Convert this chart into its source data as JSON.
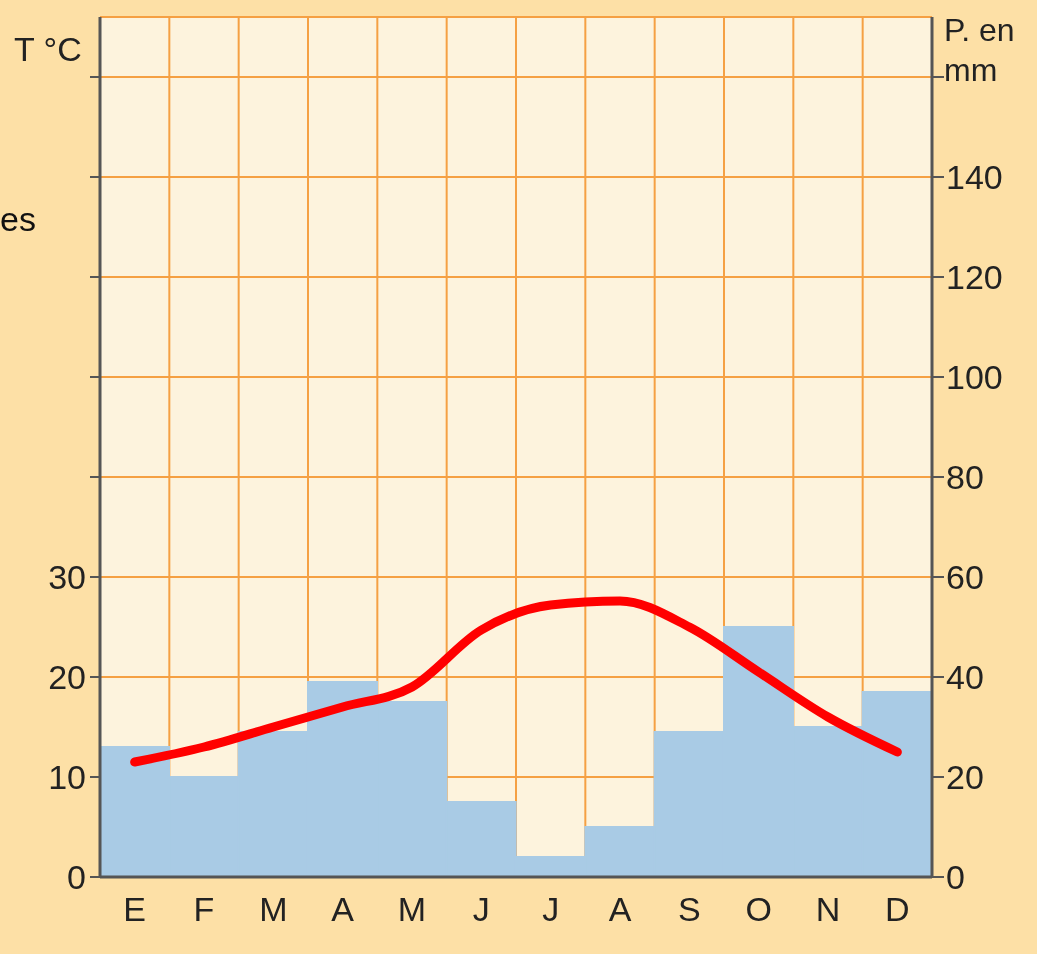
{
  "chart_data": {
    "type": "bar",
    "ylabel": "T °C",
    "y2label": "P. en mm",
    "categories": [
      "E",
      "F",
      "M",
      "A",
      "M",
      "J",
      "J",
      "A",
      "S",
      "O",
      "N",
      "D"
    ],
    "series": [
      {
        "type": "bar",
        "axis": "y2",
        "color": "#a9cbe5",
        "values": [
          26,
          20,
          29,
          39,
          35,
          15,
          4,
          10,
          29,
          50,
          30,
          37
        ]
      },
      {
        "type": "line",
        "axis": "y",
        "color": "#ff0000",
        "values": [
          11.5,
          13,
          15,
          17,
          19,
          24.7,
          27.2,
          27.6,
          25,
          20.5,
          16,
          12.5
        ]
      }
    ],
    "ylim": [
      0,
      86
    ],
    "yticks": [
      0,
      10,
      20,
      30,
      {
        "value": 40,
        "label": null
      },
      {
        "value": 50,
        "label": null
      },
      {
        "value": 60,
        "label": null
      },
      {
        "value": 70,
        "label": null
      },
      {
        "value": 80,
        "label": null
      }
    ],
    "y2lim": [
      0,
      172
    ],
    "y2ticks": [
      0,
      20,
      40,
      60,
      80,
      100,
      120,
      140,
      {
        "value": 160,
        "label": null
      }
    ],
    "grid": true,
    "marker": "none",
    "line_style": "solid",
    "annotations": [
      "es"
    ]
  }
}
